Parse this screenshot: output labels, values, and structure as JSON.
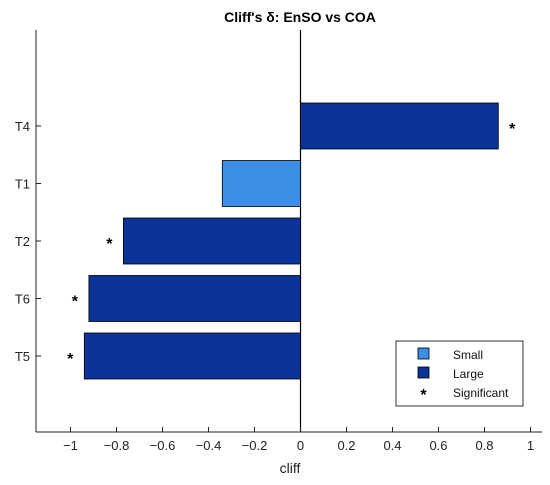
{
  "chart_data": {
    "type": "bar",
    "orientation": "horizontal",
    "title": "Cliff's δ: EnSO vs COA",
    "xlabel": "cliff",
    "ylabel": "",
    "xlim": [
      -1.15,
      1.05
    ],
    "x_ticks": [
      -1,
      -0.8,
      -0.6,
      -0.4,
      -0.2,
      0,
      0.2,
      0.4,
      0.6,
      0.8,
      1
    ],
    "x_tick_labels": [
      "−1",
      "−0.8",
      "−0.6",
      "−0.4",
      "−0.2",
      "0",
      "0.2",
      "0.4",
      "0.6",
      "0.8",
      "1"
    ],
    "categories": [
      "T4",
      "T1",
      "T2",
      "T6",
      "T5"
    ],
    "values": [
      0.86,
      -0.34,
      -0.77,
      -0.92,
      -0.94
    ],
    "magnitude": [
      "Large",
      "Small",
      "Large",
      "Large",
      "Large"
    ],
    "significant": [
      true,
      false,
      true,
      true,
      true
    ],
    "colors": {
      "Small": "#3d8ee6",
      "Large": "#0b3398",
      "edge": "#000000",
      "zero_line": "#000000"
    },
    "significance_marker": "*",
    "grid": false,
    "legend": {
      "position": "bottom-right",
      "entries": [
        {
          "label": "Small",
          "type": "swatch",
          "key": "Small"
        },
        {
          "label": "Large",
          "type": "swatch",
          "key": "Large"
        },
        {
          "label": "Significant",
          "type": "marker"
        }
      ]
    }
  }
}
